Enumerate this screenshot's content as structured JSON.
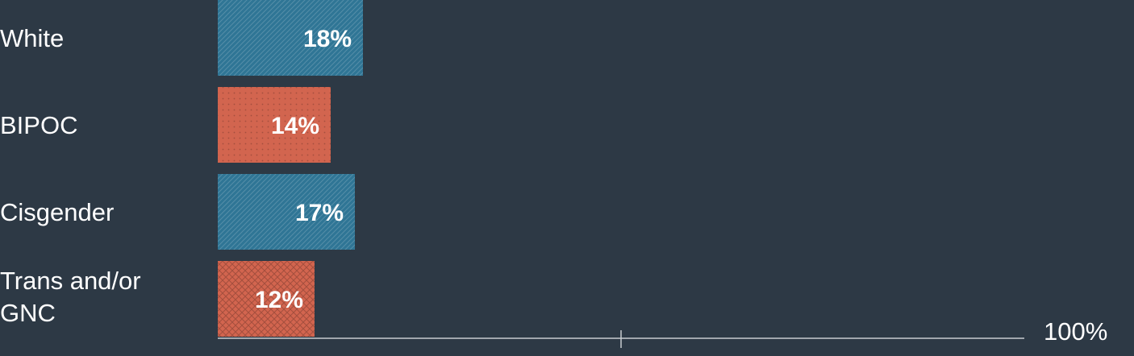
{
  "chart_data": {
    "type": "bar",
    "orientation": "horizontal",
    "categories": [
      {
        "lines": [
          "White"
        ]
      },
      {
        "lines": [
          "BIPOC"
        ]
      },
      {
        "lines": [
          "Cisgender"
        ]
      },
      {
        "lines": [
          "Trans and/or",
          "GNC"
        ]
      }
    ],
    "values": [
      18,
      14,
      17,
      12
    ],
    "value_labels": [
      "18%",
      "14%",
      "17%",
      "12%"
    ],
    "bar_colors": [
      "#2f7595",
      "#d2654f",
      "#2f7595",
      "#d2654f"
    ],
    "bar_patterns": [
      "diagonal-hatch",
      "dots",
      "diagonal-hatch",
      "crosshatch"
    ],
    "xlim": [
      0,
      100
    ],
    "axis_end_label": "100%",
    "grid": false,
    "legend": "none"
  },
  "colors": {
    "background": "#2d3945",
    "text": "#ffffff",
    "axis": "#c8ccd0"
  }
}
